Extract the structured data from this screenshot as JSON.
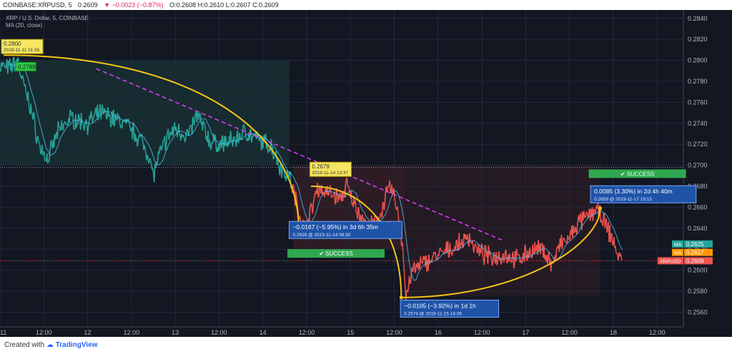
{
  "header": {
    "symbol_line": "COINBASE:XRPUSD, 5",
    "last": "0.2609",
    "change": "▼ −0.0023 (−0.87%)",
    "ohlc": "O:0.2608 H:0.2610 L:0.2607 C:0.2609"
  },
  "legend": {
    "title": "XRP / U.S. Dollar, 5, COINBASE",
    "indicator": "MA (20, close)"
  },
  "footer": {
    "created_with": "Created with",
    "brand": "TradingView"
  },
  "chart_data": {
    "type": "line",
    "y_axis": {
      "ylim": [
        0.2546,
        0.2848
      ],
      "ticks": [
        "0.2560",
        "0.2580",
        "0.2600",
        "0.2620",
        "0.2640",
        "0.2660",
        "0.2680",
        "0.2700",
        "0.2720",
        "0.2740",
        "0.2760",
        "0.2780",
        "0.2800",
        "0.2820",
        "0.2840"
      ]
    },
    "x_axis": {
      "ticks": [
        "11",
        "12:00",
        "12",
        "12:00",
        "13",
        "12:00",
        "14",
        "12:00",
        "15",
        "12:00",
        "16",
        "12:00",
        "17",
        "12:00",
        "18",
        "12:00"
      ]
    },
    "price_reference": 0.2609,
    "badges": [
      {
        "label": "MA",
        "value": "0.2625",
        "color": "#26a69a"
      },
      {
        "label": "MA",
        "value": "0.2617",
        "color": "#ff9800"
      },
      {
        "label": "XRPUSD",
        "value": "0.2609",
        "color": "#ef5350"
      }
    ],
    "price_path": [
      {
        "t": 0,
        "v": 0.2795
      },
      {
        "t": 0.1,
        "v": 0.2792
      },
      {
        "t": 0.2,
        "v": 0.28
      },
      {
        "t": 0.25,
        "v": 0.2782
      },
      {
        "t": 0.35,
        "v": 0.2755
      },
      {
        "t": 0.45,
        "v": 0.2718
      },
      {
        "t": 0.55,
        "v": 0.2705
      },
      {
        "t": 0.65,
        "v": 0.273
      },
      {
        "t": 0.8,
        "v": 0.2745
      },
      {
        "t": 1.0,
        "v": 0.274
      },
      {
        "t": 1.15,
        "v": 0.275
      },
      {
        "t": 1.3,
        "v": 0.2745
      },
      {
        "t": 1.45,
        "v": 0.2738
      },
      {
        "t": 1.6,
        "v": 0.2725
      },
      {
        "t": 1.7,
        "v": 0.271
      },
      {
        "t": 1.75,
        "v": 0.269
      },
      {
        "t": 1.8,
        "v": 0.2705
      },
      {
        "t": 1.9,
        "v": 0.2725
      },
      {
        "t": 2.0,
        "v": 0.2735
      },
      {
        "t": 2.15,
        "v": 0.2728
      },
      {
        "t": 2.25,
        "v": 0.2748
      },
      {
        "t": 2.3,
        "v": 0.274
      },
      {
        "t": 2.4,
        "v": 0.2722
      },
      {
        "t": 2.5,
        "v": 0.272
      },
      {
        "t": 2.6,
        "v": 0.2722
      },
      {
        "t": 2.7,
        "v": 0.2725
      },
      {
        "t": 2.8,
        "v": 0.2733
      },
      {
        "t": 2.9,
        "v": 0.2726
      },
      {
        "t": 3.0,
        "v": 0.2722
      },
      {
        "t": 3.1,
        "v": 0.2718
      },
      {
        "t": 3.2,
        "v": 0.2698
      },
      {
        "t": 3.3,
        "v": 0.269
      },
      {
        "t": 3.4,
        "v": 0.266
      },
      {
        "t": 3.47,
        "v": 0.2639
      },
      {
        "t": 3.55,
        "v": 0.2655
      },
      {
        "t": 3.62,
        "v": 0.2679
      },
      {
        "t": 3.7,
        "v": 0.2675
      },
      {
        "t": 3.8,
        "v": 0.2672
      },
      {
        "t": 3.9,
        "v": 0.2668
      },
      {
        "t": 3.95,
        "v": 0.2682
      },
      {
        "t": 4.0,
        "v": 0.267
      },
      {
        "t": 4.1,
        "v": 0.2655
      },
      {
        "t": 4.2,
        "v": 0.264
      },
      {
        "t": 4.3,
        "v": 0.2646
      },
      {
        "t": 4.4,
        "v": 0.2668
      },
      {
        "t": 4.45,
        "v": 0.268
      },
      {
        "t": 4.52,
        "v": 0.2665
      },
      {
        "t": 4.6,
        "v": 0.262
      },
      {
        "t": 4.63,
        "v": 0.2574
      },
      {
        "t": 4.7,
        "v": 0.2598
      },
      {
        "t": 4.8,
        "v": 0.2605
      },
      {
        "t": 4.95,
        "v": 0.2612
      },
      {
        "t": 5.1,
        "v": 0.2618
      },
      {
        "t": 5.25,
        "v": 0.2625
      },
      {
        "t": 5.35,
        "v": 0.2632
      },
      {
        "t": 5.45,
        "v": 0.2618
      },
      {
        "t": 5.6,
        "v": 0.2612
      },
      {
        "t": 5.75,
        "v": 0.2615
      },
      {
        "t": 5.9,
        "v": 0.261
      },
      {
        "t": 6.05,
        "v": 0.2618
      },
      {
        "t": 6.2,
        "v": 0.262
      },
      {
        "t": 6.3,
        "v": 0.2605
      },
      {
        "t": 6.4,
        "v": 0.2625
      },
      {
        "t": 6.5,
        "v": 0.263
      },
      {
        "t": 6.6,
        "v": 0.2645
      },
      {
        "t": 6.7,
        "v": 0.265
      },
      {
        "t": 6.8,
        "v": 0.2659
      },
      {
        "t": 6.9,
        "v": 0.2645
      },
      {
        "t": 7.0,
        "v": 0.2628
      },
      {
        "t": 7.05,
        "v": 0.2615
      },
      {
        "t": 7.1,
        "v": 0.2609
      }
    ],
    "trendline": [
      {
        "t": 1.1,
        "v": 0.2792
      },
      {
        "t": 5.75,
        "v": 0.2628
      }
    ],
    "dotted_level": 0.2698,
    "arcs": [
      {
        "from": {
          "t": 0.04,
          "v": 0.2805
        },
        "to": {
          "t": 3.41,
          "v": 0.2639
        }
      },
      {
        "from": {
          "t": 3.55,
          "v": 0.268
        },
        "to": {
          "t": 4.58,
          "v": 0.2574
        }
      },
      {
        "from": {
          "t": 4.58,
          "v": 0.2574
        },
        "to": {
          "t": 6.85,
          "v": 0.2659
        }
      }
    ],
    "markers": [
      {
        "kind": "yellow-label",
        "value": "0.2800",
        "date": "2019-11-11  01:55",
        "t": 0.0,
        "v": 0.2805
      },
      {
        "kind": "green-label",
        "value": "0.2789",
        "t": 0.05,
        "v": 0.2794
      },
      {
        "kind": "yellow-label",
        "value": "0.2679",
        "date": "2019-11-14  13:3†",
        "t": 3.52,
        "v": 0.2688
      }
    ],
    "measures": [
      {
        "text": "−0.0167 (−5.95%) in 3d 6h 35m",
        "sub": "0.2639 @ 2019-11-14  08:30",
        "t": 3.3,
        "v": 0.2637
      },
      {
        "text": "−0.0105 (−3.92%) in 1d 1h",
        "sub": "0.2574 @ 2019-11-15  14:35",
        "t": 4.57,
        "v": 0.2562
      },
      {
        "text": "0.0085 (3.30%) in 2d 4h 40m",
        "sub": "0.2659 @ 2019-11-17  19:15",
        "t": 6.74,
        "v": 0.2671
      }
    ],
    "success_labels": [
      {
        "text": "SUCCESS",
        "t": 3.28,
        "v": 0.2616
      },
      {
        "text": "SUCCESS",
        "t": 6.72,
        "v": 0.2692
      }
    ]
  }
}
